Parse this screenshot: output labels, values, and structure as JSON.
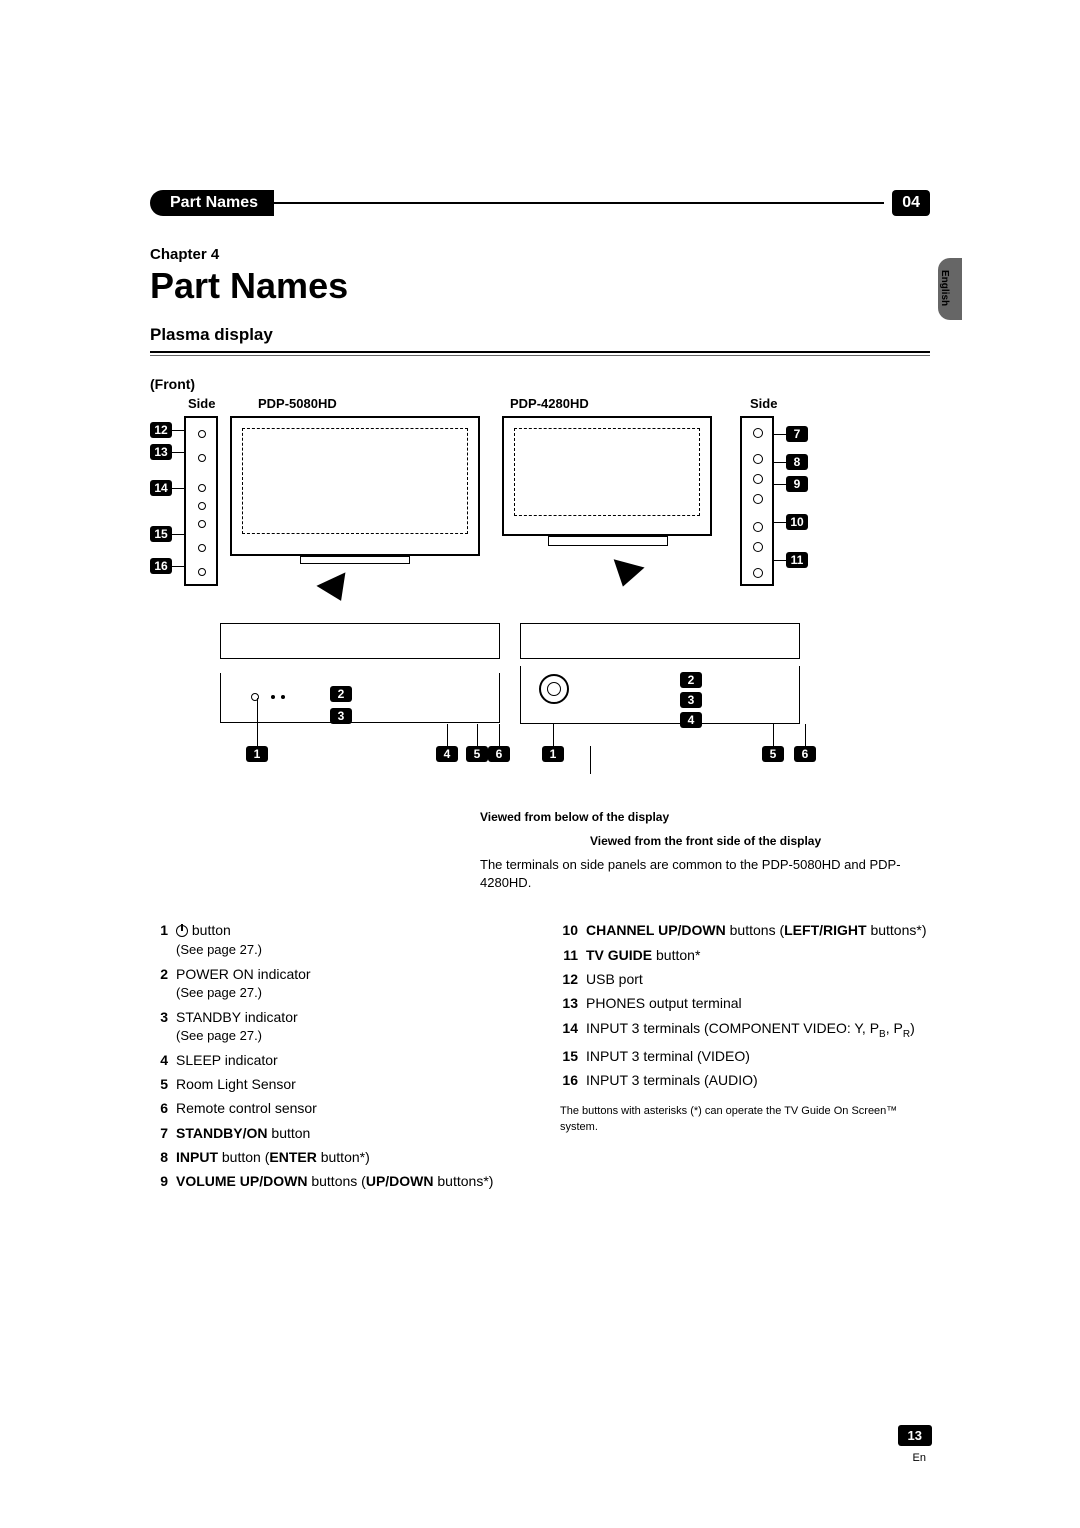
{
  "header": {
    "title": "Part Names",
    "chapter_num": "04",
    "lang": "English"
  },
  "chapter": {
    "label": "Chapter 4",
    "heading": "Part Names",
    "subtitle": "Plasma display"
  },
  "diagram": {
    "front_label": "(Front)",
    "side_left": "Side",
    "side_right": "Side",
    "model_left": "PDP-5080HD",
    "model_right": "PDP-4280HD",
    "caption1": "Viewed from below of the display",
    "caption2": "Viewed from the front side of the display",
    "note": "The terminals on side panels are common to the PDP-5080HD and PDP-4280HD.",
    "callouts_left_side": [
      "12",
      "13",
      "14",
      "15",
      "16"
    ],
    "callouts_right_side": [
      "7",
      "8",
      "9",
      "10",
      "11"
    ],
    "callouts_bottom_left": [
      "1",
      "2",
      "3",
      "4",
      "5",
      "6"
    ],
    "callouts_bottom_right": [
      "1",
      "2",
      "3",
      "4",
      "5",
      "6"
    ]
  },
  "legend": {
    "left": [
      {
        "n": "1",
        "bold": "",
        "text": " button",
        "sub": "(See page 27.)",
        "icon": "power"
      },
      {
        "n": "2",
        "bold": "",
        "text": "POWER ON indicator",
        "sub": "(See page 27.)"
      },
      {
        "n": "3",
        "bold": "",
        "text": "STANDBY indicator",
        "sub": "(See page 27.)"
      },
      {
        "n": "4",
        "bold": "",
        "text": "SLEEP indicator"
      },
      {
        "n": "5",
        "bold": "",
        "text": "Room Light  Sensor"
      },
      {
        "n": "6",
        "bold": "",
        "text": "Remote control sensor"
      },
      {
        "n": "7",
        "bold": "STANDBY/ON",
        "text": " button"
      },
      {
        "n": "8",
        "bold": "INPUT",
        "text": " button (",
        "bold2": "ENTER",
        "text2": " button*)"
      },
      {
        "n": "9",
        "bold": "VOLUME UP/DOWN",
        "text": " buttons (",
        "bold2": "UP/DOWN",
        "text2": " buttons*)"
      }
    ],
    "right": [
      {
        "n": "10",
        "bold": "CHANNEL UP/DOWN",
        "text": " buttons (",
        "bold2": "LEFT/RIGHT",
        "text2": " buttons*)"
      },
      {
        "n": "11",
        "bold": "TV GUIDE",
        "text": " button*"
      },
      {
        "n": "12",
        "bold": "",
        "text": "USB port"
      },
      {
        "n": "13",
        "bold": "",
        "text": "PHONES output terminal"
      },
      {
        "n": "14",
        "bold": "",
        "text": "INPUT 3 terminals (COMPONENT VIDEO: Y, P",
        "small": "B",
        "text2": ", P",
        "small2": "R",
        "text3": ")"
      },
      {
        "n": "15",
        "bold": "",
        "text": "INPUT 3 terminal (VIDEO)"
      },
      {
        "n": "16",
        "bold": "",
        "text": "INPUT 3 terminals (AUDIO)"
      }
    ],
    "footnote": "The buttons with asterisks (*) can operate the TV Guide On Screen™ system."
  },
  "footer": {
    "page": "13",
    "lang": "En"
  },
  "colors": {
    "black": "#000000",
    "gray": "#666666",
    "white": "#ffffff"
  }
}
